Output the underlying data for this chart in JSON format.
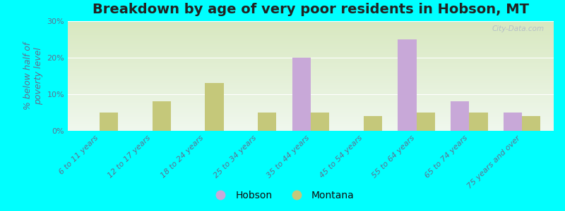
{
  "title": "Breakdown by age of very poor residents in Hobson, MT",
  "ylabel": "% below half of\npoverty level",
  "categories": [
    "6 to 11 years",
    "12 to 17 years",
    "18 to 24 years",
    "25 to 34 years",
    "35 to 44 years",
    "45 to 54 years",
    "55 to 64 years",
    "65 to 74 years",
    "75 years and over"
  ],
  "hobson": [
    0,
    0,
    0,
    0,
    20,
    0,
    25,
    8,
    5
  ],
  "montana": [
    5,
    8,
    13,
    5,
    5,
    4,
    5,
    5,
    4
  ],
  "hobson_color": "#c8a8d8",
  "montana_color": "#c5c87a",
  "background_outer": "#00ffff",
  "background_plot_bottom": "#d8e8c0",
  "background_plot_top": "#f0f8ee",
  "ylim": [
    0,
    30
  ],
  "yticks": [
    0,
    10,
    20,
    30
  ],
  "ytick_labels": [
    "0%",
    "10%",
    "20%",
    "30%"
  ],
  "bar_width": 0.35,
  "title_fontsize": 14,
  "label_fontsize": 9,
  "tick_fontsize": 8,
  "watermark": "City-Data.com"
}
